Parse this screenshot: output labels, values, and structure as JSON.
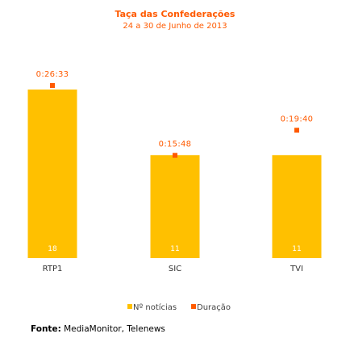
{
  "chart_data": {
    "type": "bar",
    "title": "Taça das Confederações",
    "subtitle": "24 a 30 de Junho de 2013",
    "categories": [
      "RTP1",
      "SIC",
      "TVI"
    ],
    "series": [
      {
        "name": "Nº notícias",
        "values": [
          18,
          11,
          11
        ],
        "labels": [
          "18",
          "11",
          "11"
        ],
        "color": "#ffc000"
      },
      {
        "name": "Duração",
        "values": [
          26.55,
          15.8,
          19.667
        ],
        "labels": [
          "0:26:33",
          "0:15:48",
          "0:19:40"
        ],
        "color": "#ff5a00"
      }
    ],
    "xlabel": "",
    "ylabel": "",
    "grid": false,
    "legend": "bottom-center"
  },
  "colors": {
    "title": "#ff5a00",
    "bar": "#ffc000",
    "marker": "#ff5a00",
    "bar_label": "#ffffff"
  },
  "footer": {
    "label": "Fonte:",
    "text": " MediaMonitor, Telenews"
  }
}
